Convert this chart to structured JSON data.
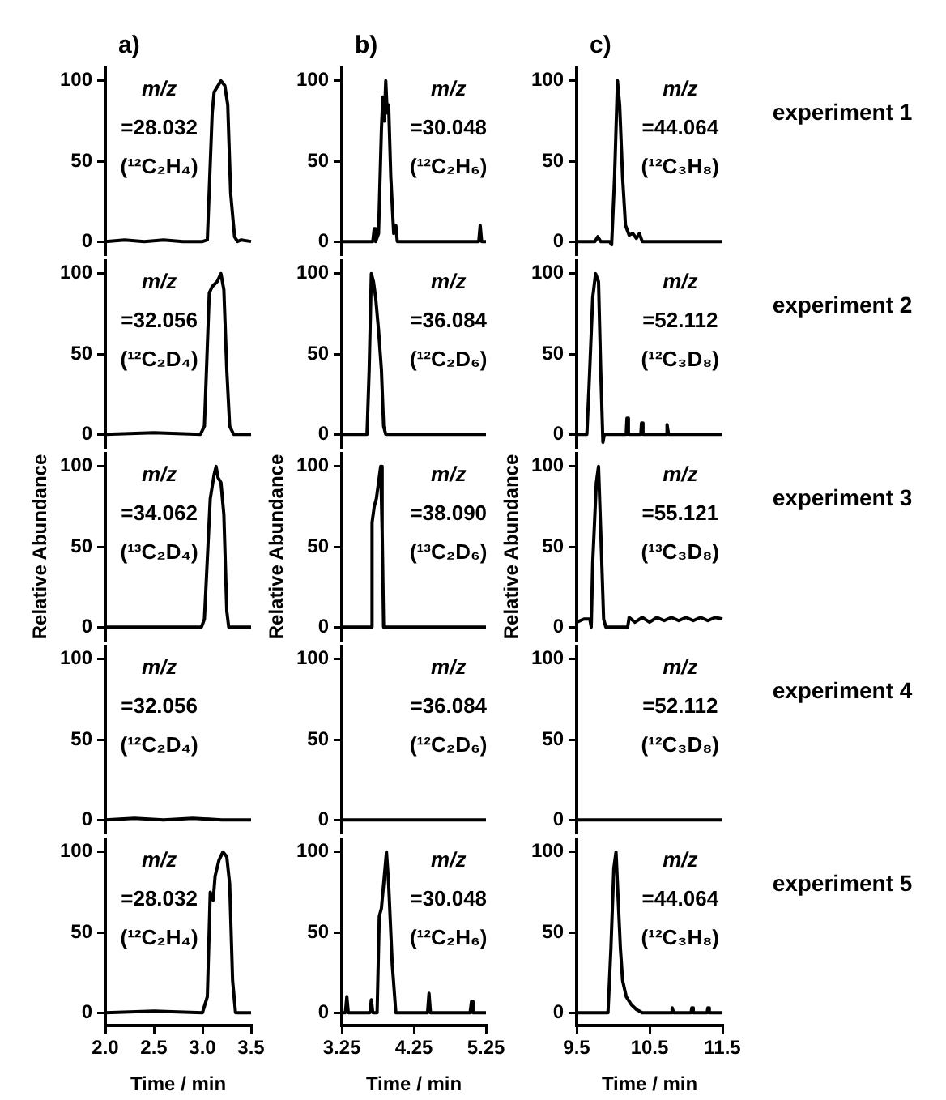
{
  "chart_data": [
    {
      "type": "line",
      "title": "a)",
      "annotations": [
        "m/z",
        "=28.032",
        "(¹²C₂H₄)"
      ],
      "color": "#000000",
      "x": [
        2.0,
        2.2,
        2.4,
        2.6,
        2.8,
        3.0,
        3.05,
        3.1,
        3.12,
        3.15,
        3.19,
        3.23,
        3.26,
        3.29,
        3.33,
        3.36,
        3.4,
        3.5
      ],
      "values": [
        0,
        1,
        0,
        1,
        0,
        0,
        1,
        80,
        93,
        96,
        100,
        97,
        85,
        30,
        3,
        0,
        1,
        0
      ],
      "xlim": [
        2.0,
        3.5
      ],
      "ylim": [
        -8,
        108
      ],
      "yticks": [
        0,
        50,
        100
      ],
      "tick_labels": "y"
    },
    {
      "type": "line",
      "title": "b)",
      "annotations": [
        "m/z",
        "=30.048",
        "(¹²C₂H₆)"
      ],
      "color": "#000000",
      "x": [
        3.25,
        3.68,
        3.7,
        3.72,
        3.76,
        3.8,
        3.82,
        3.84,
        3.86,
        3.88,
        3.9,
        3.93,
        3.97,
        4.0,
        4.02,
        5.15,
        5.17,
        5.19,
        5.25
      ],
      "values": [
        0,
        0,
        8,
        0,
        5,
        70,
        90,
        75,
        100,
        80,
        85,
        40,
        5,
        10,
        0,
        0,
        10,
        0,
        0
      ],
      "xlim": [
        3.25,
        5.25
      ],
      "ylim": [
        -8,
        108
      ],
      "yticks": [
        0,
        50,
        100
      ],
      "tick_labels": "y"
    },
    {
      "type": "line",
      "title": "c)",
      "annotations": [
        "m/z",
        "=44.064",
        "(¹²C₃H₈)",
        "experiment 1"
      ],
      "color": "#000000",
      "x": [
        9.5,
        9.75,
        9.79,
        9.83,
        9.95,
        9.98,
        10.02,
        10.06,
        10.09,
        10.13,
        10.17,
        10.22,
        10.27,
        10.32,
        10.36,
        10.4,
        11.5
      ],
      "values": [
        0,
        0,
        3,
        0,
        0,
        -2,
        40,
        100,
        85,
        40,
        10,
        4,
        5,
        2,
        5,
        0,
        0
      ],
      "xlim": [
        9.5,
        11.5
      ],
      "ylim": [
        -8,
        108
      ],
      "yticks": [
        0,
        50,
        100
      ],
      "tick_labels": "y"
    },
    {
      "type": "line",
      "annotations": [
        "m/z",
        "=32.056",
        "(¹²C₂D₄)"
      ],
      "color": "#000000",
      "x": [
        2.0,
        2.5,
        2.98,
        3.02,
        3.07,
        3.1,
        3.15,
        3.19,
        3.22,
        3.25,
        3.28,
        3.32,
        3.5
      ],
      "values": [
        0,
        1,
        0,
        5,
        88,
        92,
        95,
        100,
        90,
        40,
        5,
        0,
        0
      ],
      "xlim": [
        2.0,
        3.5
      ],
      "ylim": [
        -8,
        108
      ],
      "yticks": [
        0,
        50,
        100
      ],
      "tick_labels": "y"
    },
    {
      "type": "line",
      "annotations": [
        "m/z",
        "=36.084",
        "(¹²C₂D₆)"
      ],
      "color": "#000000",
      "x": [
        3.25,
        3.6,
        3.63,
        3.66,
        3.69,
        3.72,
        3.76,
        3.8,
        3.83,
        3.86,
        5.25
      ],
      "values": [
        0,
        0,
        40,
        100,
        95,
        85,
        65,
        40,
        5,
        0,
        0
      ],
      "xlim": [
        3.25,
        5.25
      ],
      "ylim": [
        -8,
        108
      ],
      "yticks": [
        0,
        50,
        100
      ],
      "tick_labels": "y"
    },
    {
      "type": "line",
      "annotations": [
        "m/z",
        "=52.112",
        "(¹²C₃D₈)",
        "experiment 2"
      ],
      "color": "#000000",
      "x": [
        9.5,
        9.64,
        9.67,
        9.72,
        9.76,
        9.8,
        9.83,
        9.86,
        9.88,
        10.18,
        10.19,
        10.21,
        10.38,
        10.39,
        10.41,
        10.73,
        10.74,
        10.76,
        11.5
      ],
      "values": [
        0,
        0,
        30,
        85,
        100,
        95,
        40,
        -5,
        0,
        0,
        10,
        0,
        0,
        7,
        0,
        0,
        6,
        0,
        0
      ],
      "xlim": [
        9.5,
        11.5
      ],
      "ylim": [
        -8,
        108
      ],
      "yticks": [
        0,
        50,
        100
      ],
      "tick_labels": "y"
    },
    {
      "type": "line",
      "ylabel": "Relative Abundance",
      "annotations": [
        "m/z",
        "=34.062",
        "(¹³C₂D₄)"
      ],
      "color": "#000000",
      "x": [
        2.0,
        2.99,
        3.02,
        3.08,
        3.12,
        3.14,
        3.16,
        3.19,
        3.22,
        3.25,
        3.27,
        3.5
      ],
      "values": [
        0,
        0,
        5,
        80,
        95,
        100,
        93,
        90,
        70,
        10,
        0,
        0
      ],
      "xlim": [
        2.0,
        3.5
      ],
      "ylim": [
        -8,
        108
      ],
      "yticks": [
        0,
        50,
        100
      ],
      "tick_labels": "y"
    },
    {
      "type": "line",
      "ylabel": "Relative Abundance",
      "annotations": [
        "m/z",
        "=38.090",
        "(¹³C₂D₆)"
      ],
      "color": "#000000",
      "x": [
        3.25,
        3.66,
        3.67,
        3.7,
        3.73,
        3.76,
        3.79,
        3.81,
        3.83,
        5.25
      ],
      "values": [
        0,
        0,
        65,
        75,
        80,
        90,
        100,
        60,
        0,
        0
      ],
      "xlim": [
        3.25,
        5.25
      ],
      "ylim": [
        -8,
        108
      ],
      "yticks": [
        0,
        50,
        100
      ],
      "tick_labels": "y"
    },
    {
      "type": "line",
      "ylabel": "Relative Abundance",
      "annotations": [
        "m/z",
        "=55.121",
        "(¹³C₃D₈)",
        "experiment 3"
      ],
      "color": "#000000",
      "x": [
        9.5,
        9.6,
        9.68,
        9.7,
        9.72,
        9.77,
        9.8,
        9.83,
        9.87,
        9.9,
        10.2,
        10.22,
        10.3,
        10.4,
        10.5,
        10.6,
        10.7,
        10.8,
        10.9,
        11.0,
        11.1,
        11.2,
        11.3,
        11.4,
        11.5
      ],
      "values": [
        3,
        5,
        5,
        0,
        40,
        90,
        100,
        60,
        5,
        0,
        0,
        6,
        3,
        6,
        3,
        6,
        4,
        6,
        4,
        6,
        4,
        6,
        4,
        6,
        5
      ],
      "xlim": [
        9.5,
        11.5
      ],
      "ylim": [
        -8,
        108
      ],
      "yticks": [
        0,
        50,
        100
      ],
      "tick_labels": "y"
    },
    {
      "type": "line",
      "annotations": [
        "m/z",
        "=32.056",
        "(¹²C₂D₄)"
      ],
      "color": "#000000",
      "x": [
        2.0,
        2.3,
        2.6,
        2.9,
        3.2,
        3.5
      ],
      "values": [
        0,
        1,
        0,
        1,
        0,
        0
      ],
      "xlim": [
        2.0,
        3.5
      ],
      "ylim": [
        -8,
        108
      ],
      "yticks": [
        0,
        50,
        100
      ],
      "tick_labels": "y"
    },
    {
      "type": "line",
      "annotations": [
        "m/z",
        "=36.084",
        "(¹²C₂D₆)"
      ],
      "color": "#000000",
      "x": [
        3.25,
        5.25
      ],
      "values": [
        0,
        0
      ],
      "xlim": [
        3.25,
        5.25
      ],
      "ylim": [
        -8,
        108
      ],
      "yticks": [
        0,
        50,
        100
      ],
      "tick_labels": "y"
    },
    {
      "type": "line",
      "annotations": [
        "m/z",
        "=52.112",
        "(¹²C₃D₈)",
        "experiment 4"
      ],
      "color": "#000000",
      "x": [
        9.5,
        11.5
      ],
      "values": [
        0,
        0
      ],
      "xlim": [
        9.5,
        11.5
      ],
      "ylim": [
        -8,
        108
      ],
      "yticks": [
        0,
        50,
        100
      ],
      "tick_labels": "y"
    },
    {
      "type": "line",
      "xlabel": "Time / min",
      "annotations": [
        "m/z",
        "=28.032",
        "(¹²C₂H₄)"
      ],
      "color": "#000000",
      "x": [
        2.0,
        2.5,
        3.0,
        3.05,
        3.08,
        3.11,
        3.13,
        3.17,
        3.21,
        3.25,
        3.28,
        3.31,
        3.34,
        3.5
      ],
      "values": [
        0,
        1,
        0,
        10,
        75,
        70,
        85,
        95,
        100,
        97,
        80,
        20,
        0,
        0
      ],
      "xlim": [
        2.0,
        3.5
      ],
      "xticks": [
        {
          "value": 2,
          "label": "2.0"
        },
        2.5,
        {
          "value": 3,
          "label": "3.0"
        },
        3.5
      ],
      "ylim": [
        -8,
        108
      ],
      "yticks": [
        0,
        50,
        100
      ]
    },
    {
      "type": "line",
      "xlabel": "Time / min",
      "annotations": [
        "m/z",
        "=30.048",
        "(¹²C₂H₆)"
      ],
      "color": "#000000",
      "x": [
        3.25,
        3.3,
        3.32,
        3.34,
        3.64,
        3.66,
        3.68,
        3.74,
        3.77,
        3.8,
        3.84,
        3.87,
        3.9,
        3.95,
        4.0,
        4.44,
        4.46,
        4.48,
        5.03,
        5.05,
        5.07,
        5.25
      ],
      "values": [
        0,
        0,
        10,
        0,
        0,
        8,
        0,
        0,
        60,
        65,
        85,
        100,
        80,
        30,
        0,
        0,
        12,
        0,
        0,
        7,
        0,
        0
      ],
      "xlim": [
        3.25,
        5.25
      ],
      "xticks": [
        3.25,
        4.25,
        5.25
      ],
      "ylim": [
        -8,
        108
      ],
      "yticks": [
        0,
        50,
        100
      ]
    },
    {
      "type": "line",
      "xlabel": "Time / min",
      "annotations": [
        "m/z",
        "=44.064",
        "(¹²C₃H₈)",
        "experiment 5"
      ],
      "color": "#000000",
      "x": [
        9.5,
        9.93,
        9.97,
        10.01,
        10.04,
        10.07,
        10.1,
        10.13,
        10.18,
        10.25,
        10.32,
        10.4,
        10.8,
        10.81,
        10.83,
        11.07,
        11.08,
        11.1,
        11.29,
        11.3,
        11.32,
        11.5
      ],
      "values": [
        0,
        0,
        40,
        90,
        100,
        70,
        40,
        20,
        10,
        5,
        2,
        0,
        0,
        3,
        0,
        0,
        3,
        0,
        0,
        3,
        0,
        0
      ],
      "xlim": [
        9.5,
        11.5
      ],
      "xticks": [
        9.5,
        10.5,
        11.5
      ],
      "ylim": [
        -8,
        108
      ],
      "yticks": [
        0,
        50,
        100
      ]
    }
  ]
}
